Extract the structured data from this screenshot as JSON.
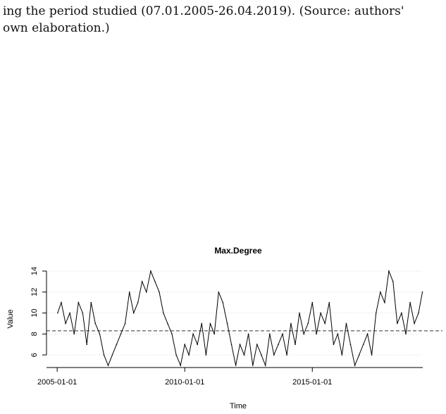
{
  "caption": {
    "line1": "ing the period studied (07.01.2005-26.04.2019). (Source: authors'",
    "line2": "own elaboration.)"
  },
  "chart_data": {
    "type": "line",
    "title": "Max.Degree",
    "xlabel": "Time",
    "ylabel": "Value",
    "x_range": [
      "2004-08-01",
      "2019-05-01"
    ],
    "ylim": [
      4.8,
      14.2
    ],
    "x_ticks": [
      {
        "date": "2005-01-01",
        "label": "2005-01-01"
      },
      {
        "date": "2010-01-01",
        "label": "2010-01-01"
      },
      {
        "date": "2015-01-01",
        "label": "2015-01-01"
      }
    ],
    "y_ticks": [
      6,
      8,
      10,
      12,
      14
    ],
    "y_gridlines": true,
    "mean_line": 8.3,
    "colors": {
      "series": "#000000",
      "grid": "#d9d9d9",
      "mean": "#333333"
    },
    "series": [
      {
        "x": [
          "2005-01-07",
          "2005-03-01",
          "2005-05-01",
          "2005-07-01",
          "2005-09-01",
          "2005-11-01",
          "2006-01-01",
          "2006-03-01",
          "2006-05-01",
          "2006-07-01",
          "2006-09-01",
          "2006-11-01",
          "2007-01-01",
          "2007-03-01",
          "2007-05-01",
          "2007-07-01",
          "2007-09-01",
          "2007-11-01",
          "2008-01-01",
          "2008-03-01",
          "2008-05-01",
          "2008-07-01",
          "2008-09-01",
          "2008-11-01",
          "2009-01-01",
          "2009-03-01",
          "2009-05-01",
          "2009-07-01",
          "2009-09-01",
          "2009-11-01",
          "2010-01-01",
          "2010-03-01",
          "2010-05-01",
          "2010-07-01",
          "2010-09-01",
          "2010-11-01",
          "2011-01-01",
          "2011-03-01",
          "2011-05-01",
          "2011-07-01",
          "2011-09-01",
          "2011-11-01",
          "2012-01-01",
          "2012-03-01",
          "2012-05-01",
          "2012-07-01",
          "2012-09-01",
          "2012-11-01",
          "2013-01-01",
          "2013-03-01",
          "2013-05-01",
          "2013-07-01",
          "2013-09-01",
          "2013-11-01",
          "2014-01-01",
          "2014-03-01",
          "2014-05-01",
          "2014-07-01",
          "2014-09-01",
          "2014-11-01",
          "2015-01-01",
          "2015-03-01",
          "2015-05-01",
          "2015-07-01",
          "2015-09-01",
          "2015-11-01",
          "2016-01-01",
          "2016-03-01",
          "2016-05-01",
          "2016-07-01",
          "2016-09-01",
          "2016-11-01",
          "2017-01-01",
          "2017-03-01",
          "2017-05-01",
          "2017-07-01",
          "2017-09-01",
          "2017-11-01",
          "2018-01-01",
          "2018-03-01",
          "2018-05-01",
          "2018-07-01",
          "2018-09-01",
          "2018-11-01",
          "2019-01-01",
          "2019-03-01",
          "2019-04-26"
        ],
        "values": [
          10,
          11,
          9,
          10,
          8,
          11,
          10,
          7,
          11,
          9,
          8,
          6,
          5,
          6,
          7,
          8,
          9,
          12,
          10,
          11,
          13,
          12,
          14,
          13,
          12,
          10,
          9,
          8,
          6,
          5,
          7,
          6,
          8,
          7,
          9,
          6,
          9,
          8,
          12,
          11,
          9,
          7,
          5,
          7,
          6,
          8,
          5,
          7,
          6,
          5,
          8,
          6,
          7,
          8,
          6,
          9,
          7,
          10,
          8,
          9,
          11,
          8,
          10,
          9,
          11,
          7,
          8,
          6,
          9,
          7,
          5,
          6,
          7,
          8,
          6,
          10,
          12,
          11,
          14,
          13,
          9,
          10,
          8,
          11,
          9,
          10,
          12
        ]
      }
    ]
  }
}
